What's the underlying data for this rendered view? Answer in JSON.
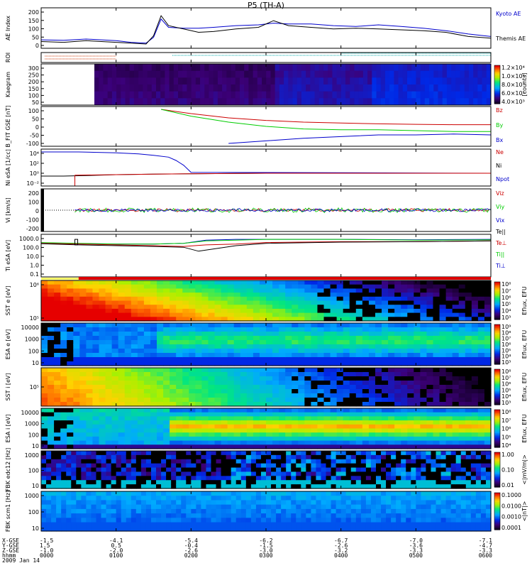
{
  "chart_data": {
    "type": "multi-panel time series / spectrogram",
    "title": "P5 (TH-A)",
    "date": "2009 Jan 14",
    "x_axis": {
      "row_labels": [
        "X-GSE",
        "Y-GSE",
        "Z-GSE",
        "hhmm"
      ],
      "ticks": [
        {
          "x": "-1.5",
          "y": "1.5",
          "z": "-1.0",
          "t": "0000"
        },
        {
          "x": "-4.1",
          "y": "0.5",
          "z": "-2.0",
          "t": "0100"
        },
        {
          "x": "-5.4",
          "y": "-0.4",
          "z": "-2.6",
          "t": "0200"
        },
        {
          "x": "-6.2",
          "y": "-1.5",
          "z": "-3.0",
          "t": "0300"
        },
        {
          "x": "-6.7",
          "y": "-2.6",
          "z": "-3.2",
          "t": "0400"
        },
        {
          "x": "-7.0",
          "y": "-3.6",
          "z": "-3.3",
          "t": "0500"
        },
        {
          "x": "-7.1",
          "y": "-4.7",
          "z": "-3.3",
          "t": "0600"
        }
      ]
    },
    "panels": [
      {
        "id": "ae",
        "ylabel": "AE Index",
        "yticks": [
          "200",
          "150",
          "100",
          "50",
          "0"
        ],
        "legend": [
          {
            "name": "Kyoto AE",
            "color": "#0000cc"
          },
          {
            "name": "Themis AE",
            "color": "#000000"
          }
        ],
        "series": [
          {
            "name": "Kyoto AE",
            "color": "#0000cc",
            "t": [
              0,
              0.3,
              0.6,
              1.0,
              1.2,
              1.4,
              1.5,
              1.6,
              1.7,
              1.9,
              2.1,
              2.3,
              2.6,
              2.9,
              3.1,
              3.3,
              3.6,
              3.9,
              4.2,
              4.5,
              4.8,
              5.1,
              5.4,
              5.7,
              6.0
            ],
            "v": [
              25,
              22,
              30,
              20,
              10,
              5,
              40,
              150,
              100,
              95,
              95,
              100,
              110,
              115,
              125,
              120,
              120,
              110,
              105,
              115,
              105,
              95,
              80,
              60,
              45
            ]
          },
          {
            "name": "Themis AE",
            "color": "#000000",
            "t": [
              0,
              0.3,
              0.6,
              1.0,
              1.2,
              1.4,
              1.5,
              1.6,
              1.7,
              1.9,
              2.1,
              2.3,
              2.6,
              2.9,
              3.1,
              3.3,
              3.6,
              3.9,
              4.2,
              4.5,
              4.8,
              5.1,
              5.4,
              5.7,
              6.0
            ],
            "v": [
              15,
              10,
              20,
              10,
              5,
              0,
              50,
              170,
              110,
              90,
              70,
              75,
              90,
              100,
              140,
              110,
              100,
              90,
              95,
              90,
              85,
              80,
              70,
              45,
              35
            ]
          }
        ]
      },
      {
        "id": "roi",
        "ylabel": "ROI"
      },
      {
        "id": "kp",
        "ylabel": "Kaegram",
        "yticks": [
          "300",
          "250",
          "200",
          "150",
          "100",
          "50"
        ],
        "colorbar": {
          "labels": [
            "1.2×10⁴",
            "1.0×10⁴",
            "8.0×10³",
            "6.0×10³",
            "4.0×10³"
          ],
          "unit": "[counts]"
        }
      },
      {
        "id": "bfit",
        "ylabel": "B_FIT GSE [nT]",
        "yticks": [
          "100",
          "50",
          "0",
          "-50",
          "-100"
        ],
        "legend": [
          {
            "name": "Bz",
            "color": "#cc0000"
          },
          {
            "name": "By",
            "color": "#00cc00"
          },
          {
            "name": "Bx",
            "color": "#0000cc"
          }
        ],
        "series": [
          {
            "name": "Bz",
            "color": "#cc0000",
            "t": [
              1.6,
              2.0,
              2.5,
              3.0,
              3.5,
              4.0,
              4.5,
              5.0,
              5.5,
              6.0
            ],
            "v": [
              100,
              75,
              50,
              35,
              25,
              20,
              15,
              12,
              10,
              10
            ]
          },
          {
            "name": "By",
            "color": "#00cc00",
            "t": [
              1.6,
              2.0,
              2.5,
              3.0,
              3.5,
              4.0,
              4.5,
              5.0,
              5.5,
              6.0
            ],
            "v": [
              100,
              60,
              25,
              0,
              -15,
              -20,
              -20,
              -25,
              -30,
              -30
            ]
          },
          {
            "name": "Bx",
            "color": "#0000cc",
            "t": [
              2.5,
              3.0,
              3.5,
              4.0,
              4.5,
              5.0,
              5.5,
              6.0
            ],
            "v": [
              -100,
              -85,
              -70,
              -60,
              -50,
              -50,
              -45,
              -50
            ]
          }
        ]
      },
      {
        "id": "ni",
        "ylabel": "Ni eSA [1/cc]",
        "yticks": [
          "10⁴",
          "10²",
          "10⁰",
          "10⁻²"
        ],
        "legend": [
          {
            "name": "Ne",
            "color": "#cc0000"
          },
          {
            "name": "Ni",
            "color": "#000000"
          },
          {
            "name": "Npot",
            "color": "#0000cc"
          }
        ],
        "series": [
          {
            "name": "Npot",
            "color": "#0000cc",
            "t": [
              0,
              0.5,
              1.0,
              1.3,
              1.5,
              1.7,
              1.8,
              1.9,
              2.0,
              6.0
            ],
            "v": [
              4.3,
              4.3,
              4.1,
              3.9,
              3.6,
              3.2,
              2.5,
              1.5,
              0.0,
              -0.2
            ]
          },
          {
            "name": "Ni",
            "color": "#000000",
            "t": [
              0,
              0.3,
              0.6,
              1.0,
              1.5,
              2.0,
              3.0,
              4.0,
              5.0,
              6.0
            ],
            "v": [
              -0.8,
              -0.8,
              -0.7,
              -0.5,
              -0.4,
              -0.3,
              -0.2,
              -0.2,
              -0.2,
              -0.2
            ]
          },
          {
            "name": "Ne",
            "color": "#cc0000",
            "t": [
              0.45,
              1.0,
              1.5,
              2.0,
              3.0,
              4.0,
              5.0,
              6.0
            ],
            "v": [
              -0.6,
              -0.5,
              -0.4,
              -0.3,
              -0.2,
              -0.2,
              -0.2,
              -0.2
            ]
          }
        ]
      },
      {
        "id": "vi",
        "ylabel": "Vi [km/s]",
        "yticks": [
          "200",
          "100",
          "0",
          "-100",
          "-200"
        ],
        "legend": [
          {
            "name": "Viz",
            "color": "#cc0000"
          },
          {
            "name": "Viy",
            "color": "#00cc00"
          },
          {
            "name": "Vix",
            "color": "#0000cc"
          }
        ]
      },
      {
        "id": "ti",
        "ylabel": "Ti eSA [eV]",
        "yticks": [
          "1000.0",
          "100.0",
          "10.0",
          "1.0",
          "0.1"
        ],
        "legend": [
          {
            "name": "Te||",
            "color": "#000000"
          },
          {
            "name": "Te⊥",
            "color": "#cc0000"
          },
          {
            "name": "Ti||",
            "color": "#00cc00"
          },
          {
            "name": "Ti⊥",
            "color": "#0000cc"
          }
        ],
        "series": [
          {
            "name": "Ti⊥",
            "color": "#0000cc",
            "t": [
              0,
              0.5,
              1.0,
              1.5,
              1.9,
              2.2,
              2.6,
              3.0,
              4.0,
              5.0,
              6.0
            ],
            "v": [
              2.9,
              2.8,
              2.8,
              2.8,
              2.9,
              3.3,
              3.4,
              3.4,
              3.4,
              3.35,
              3.4
            ]
          },
          {
            "name": "Ti||",
            "color": "#00cc00",
            "t": [
              0,
              0.5,
              1.0,
              1.5,
              1.9,
              2.2,
              2.6,
              3.0,
              4.0,
              5.0,
              6.0
            ],
            "v": [
              3.0,
              2.9,
              2.8,
              2.8,
              2.9,
              3.2,
              3.3,
              3.4,
              3.4,
              3.3,
              3.35
            ]
          },
          {
            "name": "Te⊥",
            "color": "#cc0000",
            "t": [
              0,
              0.5,
              1.0,
              1.5,
              1.9,
              2.2,
              2.6,
              3.0,
              4.0,
              5.0,
              6.0
            ],
            "v": [
              2.9,
              2.8,
              2.7,
              2.6,
              2.5,
              2.7,
              2.8,
              3.0,
              3.1,
              3.1,
              3.2
            ]
          },
          {
            "name": "Te||",
            "color": "#000000",
            "t": [
              0,
              0.5,
              1.0,
              1.5,
              1.9,
              2.1,
              2.6,
              3.0,
              4.0,
              5.0,
              6.0
            ],
            "v": [
              2.85,
              2.7,
              2.6,
              2.5,
              2.4,
              1.9,
              2.6,
              2.9,
              3.05,
              3.1,
              3.2
            ]
          }
        ]
      },
      {
        "id": "sst_e",
        "ylabel": "SST e [eV]",
        "yticks": [
          "10⁶",
          "10⁵"
        ],
        "cb": [
          "10⁸",
          "10⁷",
          "10⁶",
          "10⁵",
          "10⁴",
          "10³"
        ],
        "cb_unit": "Eflux, EFU"
      },
      {
        "id": "esa_e",
        "ylabel": "ESA e [eV]",
        "yticks": [
          "10000",
          "1000",
          "100",
          "10"
        ],
        "cb": [
          "10⁹",
          "10⁸",
          "10⁷",
          "10⁶",
          "10⁵",
          "10⁴",
          "10³"
        ],
        "cb_unit": "Eflux, EFU"
      },
      {
        "id": "sst_i",
        "ylabel": "SST i [eV]",
        "yticks": [
          "10⁵"
        ],
        "cb": [
          "10⁸",
          "10⁷",
          "10⁶",
          "10⁵",
          "10⁴",
          "10³"
        ],
        "cb_unit": "Eflux, EFU"
      },
      {
        "id": "esa_i",
        "ylabel": "ESA i [eV]",
        "yticks": [
          "10000",
          "1000",
          "100",
          "10"
        ],
        "cb": [
          "10⁸",
          "10⁷",
          "10⁶",
          "10⁵",
          "10⁴"
        ],
        "cb_unit": "Eflux, EFU"
      },
      {
        "id": "fbk1",
        "ylabel": "FBK edc12 [Hz]",
        "yticks": [
          "1000",
          "100",
          "10"
        ],
        "cb": [
          "1.00",
          "0.10",
          "0.01"
        ],
        "cb_unit": "<|mV/m|>"
      },
      {
        "id": "fbk2",
        "ylabel": "FBK scm1 [Hz]",
        "yticks": [
          "1000",
          "100",
          "10"
        ],
        "cb": [
          "0.1000",
          "0.0100",
          "0.0010",
          "0.0001"
        ],
        "cb_unit": "<|nT|>"
      }
    ]
  }
}
